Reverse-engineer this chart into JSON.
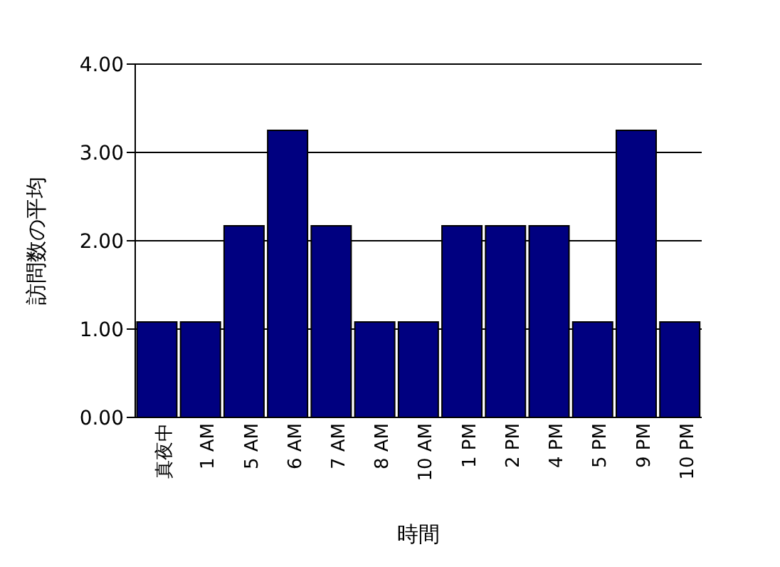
{
  "chart_data": {
    "type": "bar",
    "xlabel": "時間",
    "ylabel": "訪問数の平均",
    "categories": [
      "真夜中",
      "1 AM",
      "5 AM",
      "6 AM",
      "7 AM",
      "8 AM",
      "10 AM",
      "1 PM",
      "2 PM",
      "4 PM",
      "5 PM",
      "9 PM",
      "10 PM"
    ],
    "values": [
      1.08,
      1.08,
      2.17,
      3.25,
      2.17,
      1.08,
      1.08,
      2.17,
      2.17,
      2.17,
      1.08,
      3.25,
      1.08
    ],
    "color": "#000080",
    "ylim": [
      0,
      4
    ],
    "yticks": [
      {
        "value": 0,
        "label": "0.00"
      },
      {
        "value": 1,
        "label": "1.00"
      },
      {
        "value": 2,
        "label": "2.00"
      },
      {
        "value": 3,
        "label": "3.00"
      },
      {
        "value": 4,
        "label": "4.00"
      }
    ],
    "grid": "y",
    "legend": false
  }
}
